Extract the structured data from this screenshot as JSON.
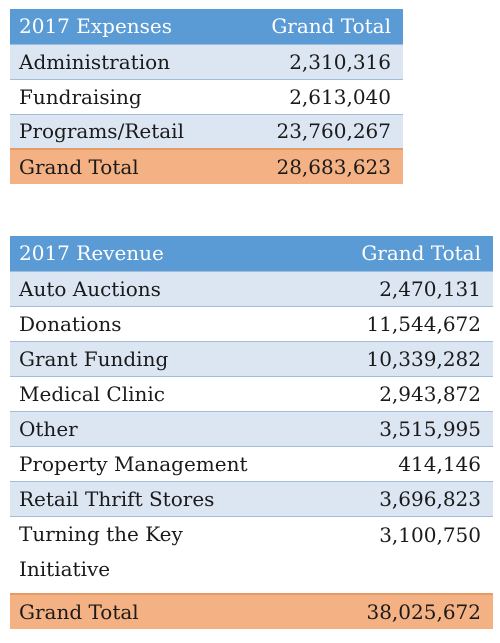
{
  "expenses": {
    "header": {
      "label": "2017 Expenses",
      "total_label": "Grand Total"
    },
    "rows": [
      {
        "label": "Administration",
        "value": "2,310,316"
      },
      {
        "label": "Fundraising",
        "value": "2,613,040"
      },
      {
        "label": "Programs/Retail",
        "value": "23,760,267"
      }
    ],
    "total": {
      "label": "Grand Total",
      "value": "28,683,623"
    }
  },
  "revenue": {
    "header": {
      "label": "2017 Revenue",
      "total_label": "Grand Total"
    },
    "rows": [
      {
        "label": "Auto Auctions",
        "value": "2,470,131"
      },
      {
        "label": "Donations",
        "value": "11,544,672"
      },
      {
        "label": "Grant Funding",
        "value": "10,339,282"
      },
      {
        "label": "Medical Clinic",
        "value": "2,943,872"
      },
      {
        "label": "Other",
        "value": "3,515,995"
      },
      {
        "label": "Property Management",
        "value": "414,146"
      },
      {
        "label": "Retail Thrift Stores",
        "value": "3,696,823"
      },
      {
        "label": "Turning the Key Initiative",
        "value": "3,100,750"
      }
    ],
    "total": {
      "label": "Grand Total",
      "value": "38,025,672"
    }
  },
  "colors": {
    "header_bg": "#5b9bd5",
    "band_bg": "#dce6f2",
    "total_bg": "#f4b183"
  }
}
